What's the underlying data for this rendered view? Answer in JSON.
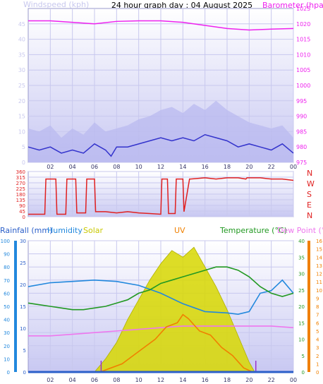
{
  "title": "24 hour graph day : 04 August 2025",
  "colors": {
    "windspeed": "#3333cc",
    "gust": "#b8b8f0",
    "barometer": "#ee22ee",
    "direction": "#e02020",
    "rainfall": "#2b5fc9",
    "humidity": "#2288dd",
    "solar": "#d8d800",
    "uv": "#f08000",
    "temperature": "#229922",
    "dewpoint": "#ee77ee",
    "grid": "#c8c8ee",
    "panel_top": "#ffffff",
    "panel_bottom": "#c8c8f2"
  },
  "chart_data": [
    {
      "type": "line",
      "title": "24 hour graph day : 04 August 2025",
      "x_ticks": [
        "02",
        "04",
        "06",
        "08",
        "10",
        "12",
        "14",
        "16",
        "18",
        "20",
        "22",
        "00"
      ],
      "xlim": [
        0,
        24
      ],
      "left_axis": {
        "label": "Windspeed (kph)",
        "ylim": [
          0,
          50
        ],
        "ticks": [
          "0",
          "5",
          "10",
          "15",
          "20",
          "25",
          "30",
          "35",
          "40",
          "45"
        ]
      },
      "right_axis": {
        "label": "Barometer (hpa)",
        "ylim": [
          975,
          1025
        ],
        "ticks": [
          "975",
          "980",
          "985",
          "990",
          "995",
          "1000",
          "1005",
          "1010",
          "1015",
          "1020",
          "1025"
        ]
      },
      "series": [
        {
          "name": "Windspeed (kph)",
          "color": "#3333cc",
          "x": [
            0,
            1,
            2,
            3,
            4,
            5,
            6,
            7,
            7.5,
            8,
            9,
            10,
            11,
            12,
            13,
            14,
            15,
            16,
            17,
            18,
            19,
            20,
            21,
            22,
            23,
            24
          ],
          "values": [
            5,
            4,
            5,
            3,
            4,
            3,
            6,
            4,
            2,
            5,
            5,
            6,
            7,
            8,
            7,
            8,
            7,
            9,
            8,
            7,
            5,
            6,
            5,
            4,
            6,
            3
          ]
        },
        {
          "name": "Wind gust (kph)",
          "color": "#b8b8f0",
          "x": [
            0,
            1,
            2,
            3,
            4,
            5,
            6,
            7,
            8,
            9,
            10,
            11,
            12,
            13,
            14,
            15,
            16,
            17,
            18,
            19,
            20,
            21,
            22,
            23,
            24
          ],
          "values": [
            11,
            10,
            12,
            8,
            11,
            9,
            13,
            10,
            11,
            12,
            14,
            15,
            17,
            18,
            16,
            19,
            17,
            20,
            17,
            15,
            13,
            12,
            11,
            12,
            8
          ]
        },
        {
          "name": "Barometer (hpa)",
          "color": "#ee22ee",
          "x": [
            0,
            2,
            4,
            6,
            8,
            10,
            12,
            14,
            16,
            18,
            20,
            22,
            24
          ],
          "values": [
            1021,
            1021,
            1020.5,
            1020,
            1020.8,
            1021,
            1021,
            1020.5,
            1019.5,
            1018.5,
            1018,
            1018.3,
            1018.5
          ]
        }
      ]
    },
    {
      "type": "line",
      "title": "",
      "x_ticks": [
        "02",
        "04",
        "06",
        "08",
        "10",
        "12",
        "14",
        "16",
        "18",
        "20",
        "22",
        "00"
      ],
      "xlim": [
        0,
        24
      ],
      "left_axis": {
        "label": "",
        "ylim": [
          0,
          360
        ],
        "ticks": [
          "0",
          "45",
          "90",
          "135",
          "180",
          "225",
          "270",
          "315",
          "360"
        ]
      },
      "right_axis": {
        "label": "",
        "ticks": [
          "N",
          "W",
          "S",
          "E",
          "N"
        ]
      },
      "series": [
        {
          "name": "Wind direction",
          "color": "#e02020",
          "x": [
            0,
            1.5,
            1.6,
            2.5,
            2.6,
            3.4,
            3.5,
            4.3,
            4.4,
            5.2,
            5.3,
            6,
            6.1,
            7,
            8,
            9,
            10,
            11,
            12,
            12.1,
            12.6,
            12.7,
            13.3,
            13.4,
            14,
            14.1,
            14.6,
            14.7,
            16,
            17,
            18,
            19,
            19.7,
            19.8,
            21,
            22,
            23,
            24
          ],
          "values": [
            20,
            20,
            300,
            300,
            20,
            20,
            300,
            300,
            30,
            30,
            300,
            300,
            40,
            40,
            30,
            40,
            30,
            25,
            20,
            300,
            300,
            25,
            25,
            300,
            300,
            40,
            300,
            300,
            310,
            300,
            310,
            310,
            300,
            310,
            310,
            300,
            300,
            290
          ]
        }
      ]
    },
    {
      "type": "line",
      "title": "",
      "x_ticks": [
        "02",
        "04",
        "06",
        "08",
        "10",
        "12",
        "14",
        "16",
        "18",
        "20",
        "22",
        "00"
      ],
      "xlim": [
        0,
        24
      ],
      "legend": [
        "Rainfall (mm)",
        "Humidity",
        "Solar",
        "UV",
        "Temperature (°C)",
        "Dew Point (°C)"
      ],
      "axes": {
        "humidity": {
          "ylim": [
            0,
            100
          ],
          "ticks": [
            "0",
            "10",
            "20",
            "30",
            "40",
            "50",
            "60",
            "70",
            "80",
            "90",
            "100"
          ]
        },
        "rainfall": {
          "ylim": [
            0,
            30
          ],
          "ticks": [
            "0",
            "5",
            "10",
            "15",
            "20",
            "25",
            "30"
          ]
        },
        "temperature": {
          "ylim": [
            0,
            40
          ],
          "ticks": [
            "0",
            "5",
            "10",
            "15",
            "20",
            "25",
            "30",
            "35",
            "40"
          ]
        },
        "uv": {
          "ylim": [
            0,
            16
          ],
          "ticks": [
            "0",
            "1",
            "2",
            "3",
            "4",
            "5",
            "6",
            "7",
            "8",
            "9",
            "10",
            "11",
            "12",
            "13",
            "14",
            "15",
            "16"
          ]
        }
      },
      "series": [
        {
          "name": "Humidity",
          "color": "#2288dd",
          "x": [
            0,
            2,
            4,
            6,
            8,
            10,
            12,
            14,
            16,
            18,
            19,
            20,
            21,
            22,
            23,
            24
          ],
          "values": [
            65,
            68,
            69,
            70,
            69,
            66,
            60,
            52,
            46,
            45,
            44,
            46,
            60,
            62,
            70,
            60
          ]
        },
        {
          "name": "Temperature (°C)",
          "color": "#229922",
          "x": [
            0,
            1,
            2,
            3,
            4,
            5,
            6,
            7,
            8,
            9,
            10,
            11,
            12,
            13,
            14,
            15,
            16,
            17,
            18,
            19,
            20,
            21,
            22,
            23,
            24
          ],
          "values": [
            21,
            20.5,
            20,
            19.5,
            19,
            19,
            19.5,
            20,
            21,
            22,
            24,
            25,
            27,
            28,
            29,
            30,
            31,
            32,
            32,
            31,
            29,
            26,
            24,
            23,
            24
          ]
        },
        {
          "name": "Dew Point (°C)",
          "color": "#ee77ee",
          "x": [
            0,
            2,
            4,
            6,
            8,
            10,
            12,
            14,
            16,
            18,
            20,
            22,
            24
          ],
          "values": [
            11,
            11,
            11.5,
            12,
            12.5,
            13,
            13.5,
            14,
            14,
            14,
            14,
            14,
            13.5
          ]
        },
        {
          "name": "Solar",
          "color": "#d8d800",
          "x": [
            6,
            7,
            8,
            9,
            10,
            11,
            12,
            13,
            14,
            15,
            16,
            17,
            18,
            19,
            20,
            20.5
          ],
          "values": [
            0,
            4,
            9,
            16,
            22,
            28,
            33,
            37,
            35,
            38,
            32,
            26,
            19,
            11,
            3,
            0
          ]
        },
        {
          "name": "UV",
          "color": "#f08000",
          "x": [
            6.5,
            7.5,
            8.5,
            9.5,
            10.5,
            11.5,
            12.5,
            13.5,
            14,
            14.5,
            15.5,
            16.5,
            17.5,
            18.5,
            19.5,
            20.3
          ],
          "values": [
            0,
            0.5,
            1,
            2,
            3,
            4,
            5.5,
            6,
            7,
            6.5,
            5,
            4.5,
            3,
            2,
            0.5,
            0
          ]
        },
        {
          "name": "Rainfall (mm)",
          "color": "#2b5fc9",
          "x": [
            0,
            24
          ],
          "values": [
            0,
            0
          ]
        }
      ]
    }
  ]
}
